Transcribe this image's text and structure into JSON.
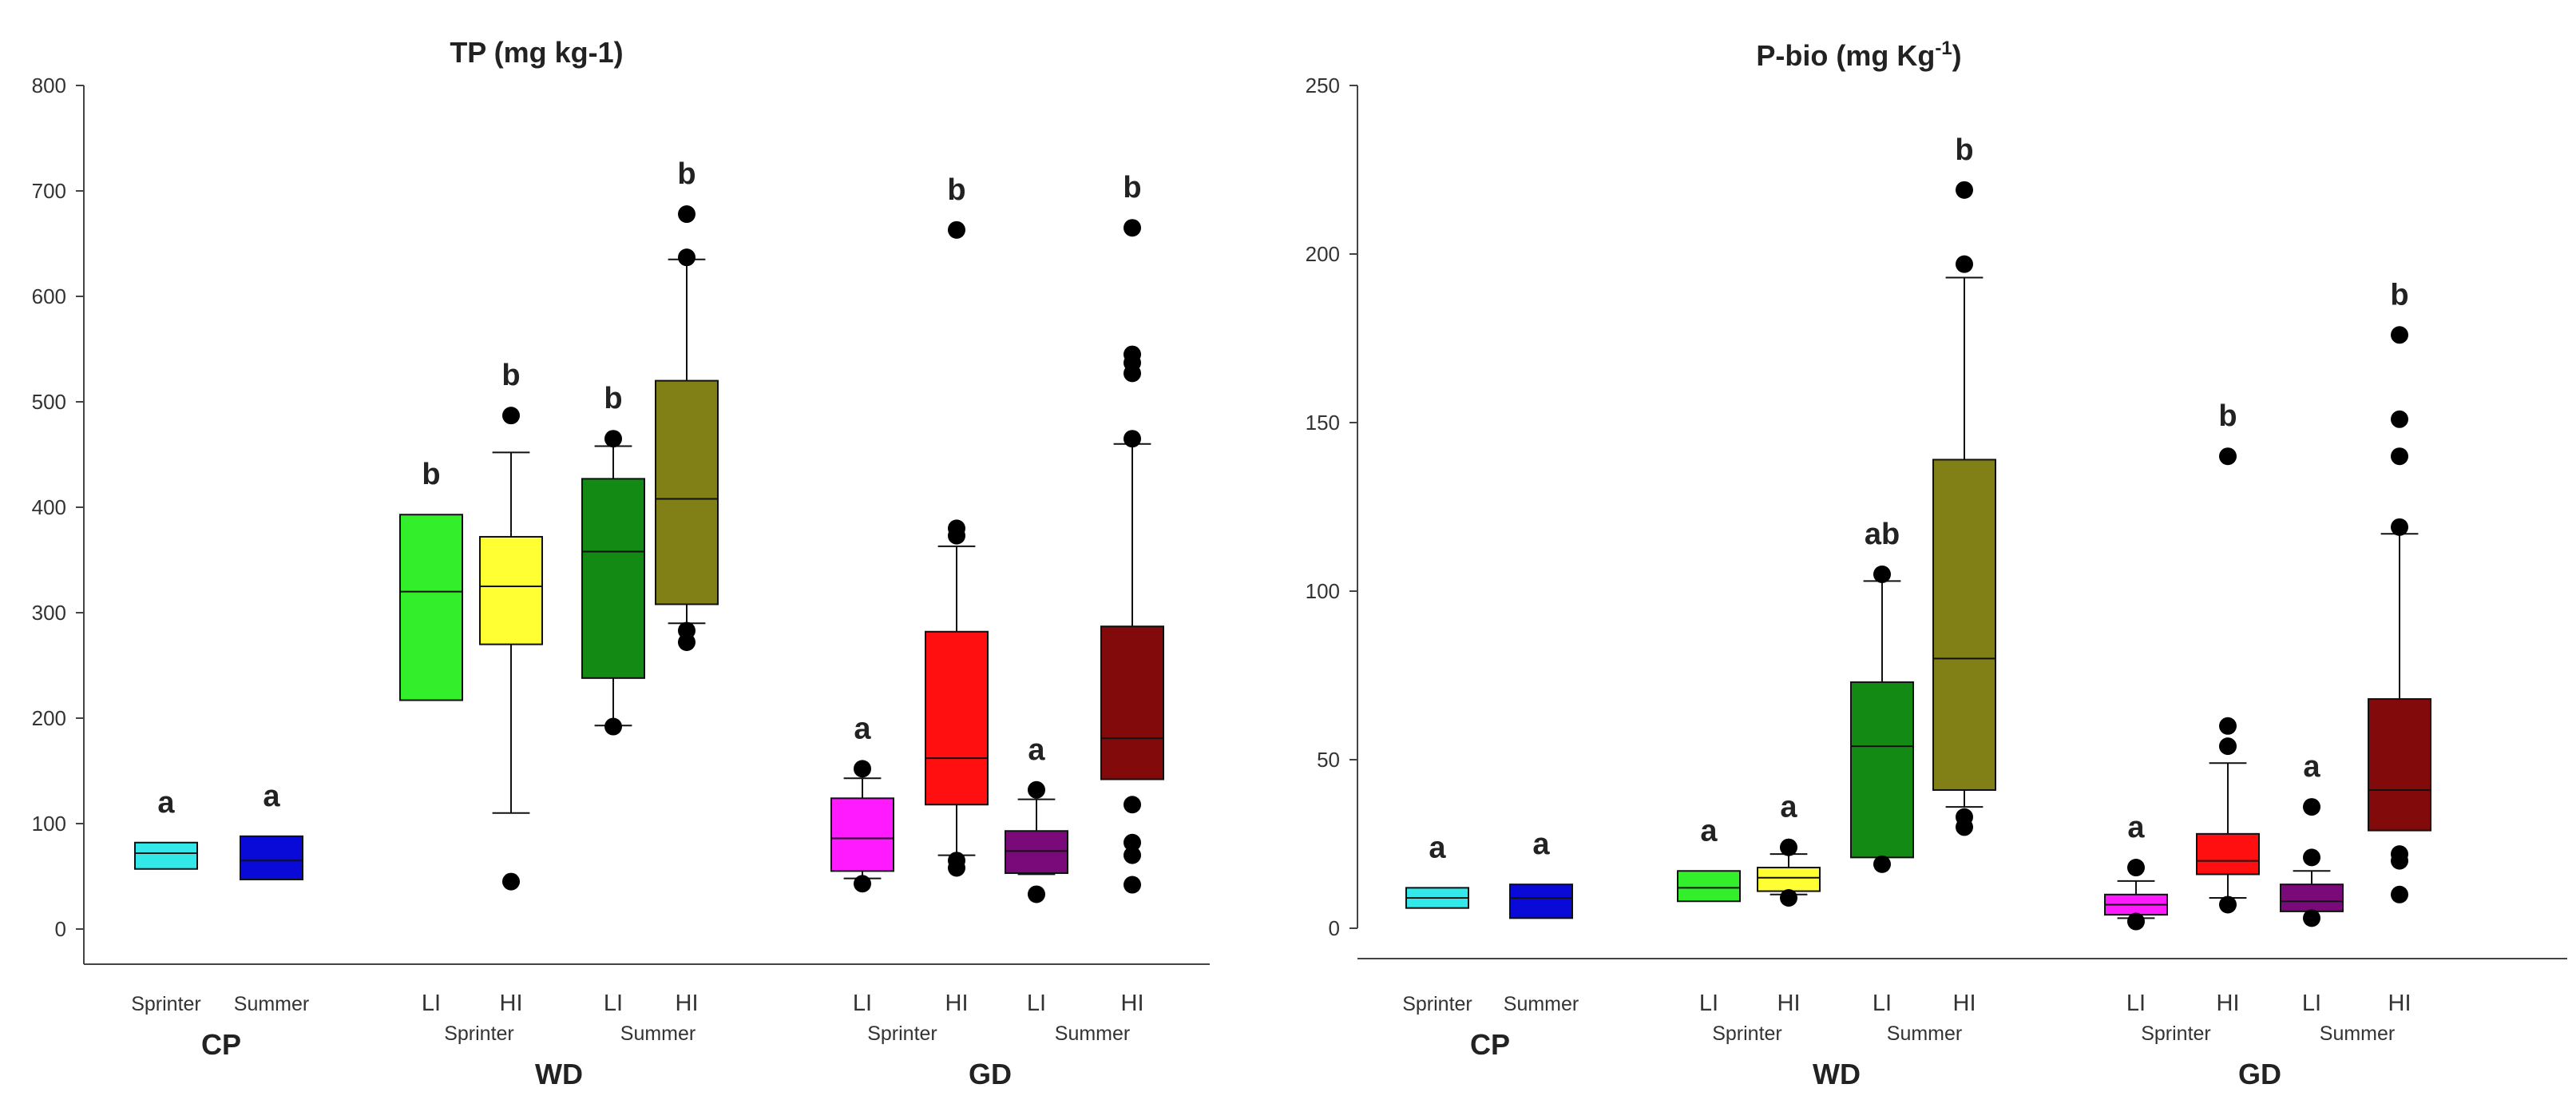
{
  "chart_data": [
    {
      "type": "box",
      "title": "TP (mg kg-1)",
      "ylim": [
        0,
        800
      ],
      "yticks": [
        0,
        100,
        200,
        300,
        400,
        500,
        600,
        700,
        800
      ],
      "boxes": [
        {
          "label": "Sprinter",
          "group": "CP",
          "season": "",
          "color": "#33E8E8",
          "whisker_low": 57,
          "q1": 57,
          "median": 72,
          "q3": 82,
          "whisker_high": 82,
          "outliers": [],
          "sig": "a"
        },
        {
          "label": "Summer",
          "group": "CP",
          "season": "",
          "color": "#0A0AD8",
          "whisker_low": 47,
          "q1": 47,
          "median": 65,
          "q3": 88,
          "whisker_high": 88,
          "outliers": [],
          "sig": "a"
        },
        {
          "label": "LI",
          "group": "WD",
          "season": "Sprinter",
          "color": "#33EE2A",
          "whisker_low": 217,
          "q1": 217,
          "median": 320,
          "q3": 393,
          "whisker_high": 393,
          "outliers": [],
          "sig": "b"
        },
        {
          "label": "HI",
          "group": "WD",
          "season": "Sprinter",
          "color": "#FFFF33",
          "whisker_low": 110,
          "q1": 270,
          "median": 325,
          "q3": 372,
          "whisker_high": 452,
          "outliers": [
            45,
            487
          ],
          "sig": "b"
        },
        {
          "label": "LI",
          "group": "WD",
          "season": "Summer",
          "color": "#138A13",
          "whisker_low": 193,
          "q1": 238,
          "median": 358,
          "q3": 427,
          "whisker_high": 458,
          "outliers": [
            192,
            465
          ],
          "sig": "b"
        },
        {
          "label": "HI",
          "group": "WD",
          "season": "Summer",
          "color": "#808016",
          "whisker_low": 290,
          "q1": 308,
          "median": 408,
          "q3": 520,
          "whisker_high": 635,
          "outliers": [
            272,
            283,
            637,
            678
          ],
          "sig": "b"
        },
        {
          "label": "LI",
          "group": "GD",
          "season": "Sprinter",
          "color": "#FF1AFF",
          "whisker_low": 48,
          "q1": 55,
          "median": 86,
          "q3": 124,
          "whisker_high": 143,
          "outliers": [
            43,
            152
          ],
          "sig": "a"
        },
        {
          "label": "HI",
          "group": "GD",
          "season": "Sprinter",
          "color": "#FF0F0F",
          "whisker_low": 70,
          "q1": 118,
          "median": 162,
          "q3": 282,
          "whisker_high": 363,
          "outliers": [
            58,
            65,
            373,
            380,
            663
          ],
          "sig": "b"
        },
        {
          "label": "LI",
          "group": "GD",
          "season": "Summer",
          "color": "#7A0A7A",
          "whisker_low": 52,
          "q1": 53,
          "median": 74,
          "q3": 93,
          "whisker_high": 123,
          "outliers": [
            33,
            132
          ],
          "sig": "a"
        },
        {
          "label": "HI",
          "group": "GD",
          "season": "Summer",
          "color": "#820A0A",
          "whisker_low": 142,
          "q1": 142,
          "median": 181,
          "q3": 287,
          "whisker_high": 460,
          "outliers": [
            42,
            70,
            82,
            118,
            465,
            527,
            537,
            545,
            665
          ],
          "sig": "b"
        }
      ]
    },
    {
      "type": "box",
      "title_main": "P-bio (mg Kg",
      "title_sup": "-1",
      "title_end": ")",
      "ylim": [
        0,
        250
      ],
      "yticks": [
        0,
        50,
        100,
        150,
        200,
        250
      ],
      "boxes": [
        {
          "label": "Sprinter",
          "group": "CP",
          "season": "",
          "color": "#33E8E8",
          "whisker_low": 6,
          "q1": 6,
          "median": 9,
          "q3": 12,
          "whisker_high": 12,
          "outliers": [],
          "sig": "a"
        },
        {
          "label": "Summer",
          "group": "CP",
          "season": "",
          "color": "#0A0AD8",
          "whisker_low": 3,
          "q1": 3,
          "median": 9,
          "q3": 13,
          "whisker_high": 13,
          "outliers": [],
          "sig": "a"
        },
        {
          "label": "LI",
          "group": "WD",
          "season": "Sprinter",
          "color": "#33EE2A",
          "whisker_low": 8,
          "q1": 8,
          "median": 12,
          "q3": 17,
          "whisker_high": 17,
          "outliers": [],
          "sig": "a"
        },
        {
          "label": "HI",
          "group": "WD",
          "season": "Sprinter",
          "color": "#FFFF33",
          "whisker_low": 10,
          "q1": 11,
          "median": 15,
          "q3": 18,
          "whisker_high": 22,
          "outliers": [
            9,
            24
          ],
          "sig": "a"
        },
        {
          "label": "LI",
          "group": "WD",
          "season": "Summer",
          "color": "#138A13",
          "whisker_low": 21,
          "q1": 21,
          "median": 54,
          "q3": 73,
          "whisker_high": 103,
          "outliers": [
            19,
            105
          ],
          "sig": "ab"
        },
        {
          "label": "HI",
          "group": "WD",
          "season": "Summer",
          "color": "#808016",
          "whisker_low": 36,
          "q1": 41,
          "median": 80,
          "q3": 139,
          "whisker_high": 193,
          "outliers": [
            30,
            33,
            197,
            219
          ],
          "sig": "b"
        },
        {
          "label": "LI",
          "group": "GD",
          "season": "Sprinter",
          "color": "#FF1AFF",
          "whisker_low": 3,
          "q1": 4,
          "median": 7,
          "q3": 10,
          "whisker_high": 14,
          "outliers": [
            2,
            18
          ],
          "sig": "a"
        },
        {
          "label": "HI",
          "group": "GD",
          "season": "Sprinter",
          "color": "#FF0F0F",
          "whisker_low": 9,
          "q1": 16,
          "median": 20,
          "q3": 28,
          "whisker_high": 49,
          "outliers": [
            7,
            54,
            60,
            140
          ],
          "sig": "b"
        },
        {
          "label": "LI",
          "group": "GD",
          "season": "Summer",
          "color": "#7A0A7A",
          "whisker_low": 5,
          "q1": 5,
          "median": 8,
          "q3": 13,
          "whisker_high": 17,
          "outliers": [
            3,
            21,
            36
          ],
          "sig": "a"
        },
        {
          "label": "HI",
          "group": "GD",
          "season": "Summer",
          "color": "#820A0A",
          "whisker_low": 29,
          "q1": 29,
          "median": 41,
          "q3": 68,
          "whisker_high": 117,
          "outliers": [
            10,
            20,
            22,
            119,
            140,
            151,
            176
          ],
          "sig": "b"
        }
      ]
    }
  ]
}
